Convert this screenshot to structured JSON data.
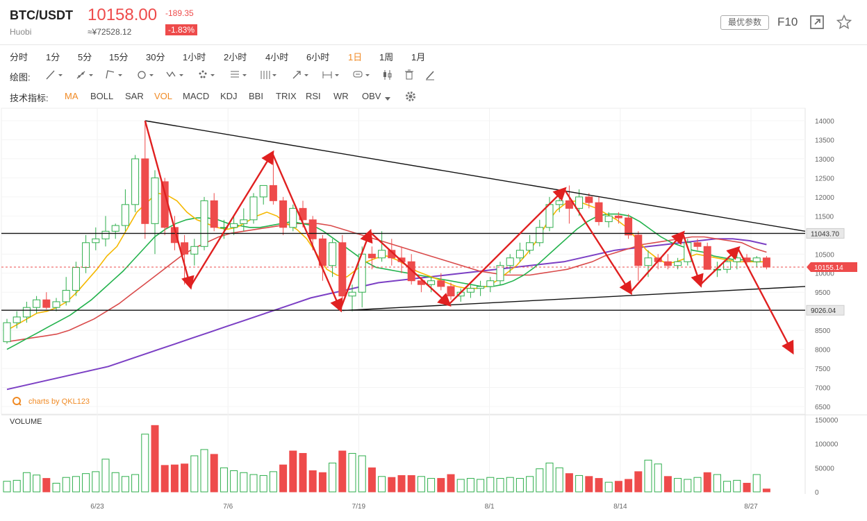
{
  "header": {
    "symbol": "BTC/USDT",
    "exchange": "Huobi",
    "price": "10158.00",
    "cny_price": "≈¥72528.12",
    "change": "-189.35",
    "change_pct": "-1.83%",
    "params_button": "最优参数",
    "f10_button": "F10"
  },
  "periods": [
    "分时",
    "1分",
    "5分",
    "15分",
    "30分",
    "1小时",
    "2小时",
    "4小时",
    "6小时",
    "1日",
    "1周",
    "1月"
  ],
  "active_period": "1日",
  "drawing": {
    "label": "绘图:",
    "tools": [
      "line-tool-icon",
      "ray-tool-icon",
      "polyline-tool-icon",
      "circle-tool-icon",
      "wave-tool-icon",
      "pattern-tool-icon",
      "fib-tool-icon",
      "channel-tool-icon",
      "arrow-tool-icon",
      "range-tool-icon",
      "text-tool-icon",
      "candle-tool-icon",
      "trash-icon",
      "pen-icon"
    ]
  },
  "indicators": {
    "label": "技术指标:",
    "items": [
      "MA",
      "BOLL",
      "SAR",
      "VOL",
      "MACD",
      "KDJ",
      "BBI",
      "TRIX",
      "RSI",
      "WR",
      "OBV"
    ],
    "active": [
      "MA",
      "VOL"
    ]
  },
  "watermark": "charts by QKL123",
  "colors": {
    "up": "#2dae4b",
    "down": "#ee4b4b",
    "ma5": "#f5b800",
    "ma10": "#22b24c",
    "ma20": "#d94a4a",
    "ma60": "#7b3fc4",
    "annotation": "#e02020",
    "accent": "#f08a24"
  },
  "chart_data": [
    {
      "type": "candlestick",
      "title": "BTC/USDT 1日",
      "y_ticks": [
        14000,
        13500,
        13000,
        12500,
        12000,
        11500,
        11000,
        10500,
        10000,
        9500,
        9000,
        8500,
        8000,
        7500,
        7000,
        6500
      ],
      "ylim": [
        6300,
        14300
      ],
      "x_tick_labels": [
        "6/23",
        "7/6",
        "7/19",
        "8/1",
        "8/14",
        "8/27"
      ],
      "price_labels": {
        "last": "10155.14",
        "resistance": "11043.70",
        "support": "9026.04"
      },
      "candles": [
        {
          "o": 8200,
          "h": 8800,
          "l": 8150,
          "c": 8700
        },
        {
          "o": 8700,
          "h": 9000,
          "l": 8550,
          "c": 8850
        },
        {
          "o": 8850,
          "h": 9250,
          "l": 8700,
          "c": 9100
        },
        {
          "o": 9100,
          "h": 9400,
          "l": 8950,
          "c": 9300
        },
        {
          "o": 9300,
          "h": 9500,
          "l": 9050,
          "c": 9100
        },
        {
          "o": 9100,
          "h": 9350,
          "l": 9000,
          "c": 9250
        },
        {
          "o": 9250,
          "h": 9900,
          "l": 9150,
          "c": 9550
        },
        {
          "o": 9550,
          "h": 10300,
          "l": 9400,
          "c": 10150
        },
        {
          "o": 10150,
          "h": 11000,
          "l": 10000,
          "c": 10800
        },
        {
          "o": 10800,
          "h": 11200,
          "l": 10600,
          "c": 10900
        },
        {
          "o": 10900,
          "h": 11500,
          "l": 10700,
          "c": 11100
        },
        {
          "o": 11100,
          "h": 11300,
          "l": 10900,
          "c": 11250
        },
        {
          "o": 11250,
          "h": 12200,
          "l": 11100,
          "c": 11800
        },
        {
          "o": 11800,
          "h": 13100,
          "l": 11600,
          "c": 13000
        },
        {
          "o": 13000,
          "h": 14000,
          "l": 10900,
          "c": 11300
        },
        {
          "o": 11300,
          "h": 12700,
          "l": 10500,
          "c": 12500
        },
        {
          "o": 12400,
          "h": 12500,
          "l": 11000,
          "c": 11200
        },
        {
          "o": 11200,
          "h": 11500,
          "l": 10600,
          "c": 10800
        },
        {
          "o": 10800,
          "h": 11000,
          "l": 9700,
          "c": 10500
        },
        {
          "o": 10500,
          "h": 10900,
          "l": 10200,
          "c": 10700
        },
        {
          "o": 10700,
          "h": 12000,
          "l": 10600,
          "c": 11900
        },
        {
          "o": 11900,
          "h": 12100,
          "l": 11100,
          "c": 11200
        },
        {
          "o": 11200,
          "h": 11400,
          "l": 10900,
          "c": 11200
        },
        {
          "o": 11200,
          "h": 11500,
          "l": 11000,
          "c": 11300
        },
        {
          "o": 11300,
          "h": 11700,
          "l": 11100,
          "c": 11400
        },
        {
          "o": 11400,
          "h": 12100,
          "l": 11300,
          "c": 12000
        },
        {
          "o": 12000,
          "h": 12300,
          "l": 11800,
          "c": 12300
        },
        {
          "o": 12300,
          "h": 13100,
          "l": 11800,
          "c": 11900
        },
        {
          "o": 11900,
          "h": 12000,
          "l": 11000,
          "c": 11200
        },
        {
          "o": 11200,
          "h": 11800,
          "l": 11100,
          "c": 11700
        },
        {
          "o": 11700,
          "h": 11900,
          "l": 11200,
          "c": 11400
        },
        {
          "o": 11400,
          "h": 11500,
          "l": 10600,
          "c": 10900
        },
        {
          "o": 10900,
          "h": 11000,
          "l": 9800,
          "c": 10200
        },
        {
          "o": 10200,
          "h": 10900,
          "l": 9900,
          "c": 10800
        },
        {
          "o": 10800,
          "h": 11000,
          "l": 9200,
          "c": 9400
        },
        {
          "o": 9400,
          "h": 9700,
          "l": 9000,
          "c": 9500
        },
        {
          "o": 9500,
          "h": 10700,
          "l": 9100,
          "c": 10500
        },
        {
          "o": 10500,
          "h": 10700,
          "l": 10100,
          "c": 10400
        },
        {
          "o": 10400,
          "h": 11100,
          "l": 10300,
          "c": 10600
        },
        {
          "o": 10600,
          "h": 10900,
          "l": 10200,
          "c": 10400
        },
        {
          "o": 10400,
          "h": 10700,
          "l": 10000,
          "c": 10300
        },
        {
          "o": 10300,
          "h": 10500,
          "l": 9700,
          "c": 9800
        },
        {
          "o": 9800,
          "h": 9900,
          "l": 9500,
          "c": 9700
        },
        {
          "o": 9700,
          "h": 9900,
          "l": 9500,
          "c": 9800
        },
        {
          "o": 9800,
          "h": 10000,
          "l": 9550,
          "c": 9650
        },
        {
          "o": 9650,
          "h": 9750,
          "l": 9300,
          "c": 9400
        },
        {
          "o": 9400,
          "h": 9600,
          "l": 9250,
          "c": 9500
        },
        {
          "o": 9500,
          "h": 9700,
          "l": 9350,
          "c": 9600
        },
        {
          "o": 9600,
          "h": 9800,
          "l": 9400,
          "c": 9650
        },
        {
          "o": 9650,
          "h": 9900,
          "l": 9500,
          "c": 9800
        },
        {
          "o": 9800,
          "h": 10300,
          "l": 9700,
          "c": 10200
        },
        {
          "o": 10200,
          "h": 10500,
          "l": 10000,
          "c": 10400
        },
        {
          "o": 10400,
          "h": 10800,
          "l": 10300,
          "c": 10600
        },
        {
          "o": 10600,
          "h": 11000,
          "l": 10500,
          "c": 10800
        },
        {
          "o": 10800,
          "h": 11400,
          "l": 10700,
          "c": 11200
        },
        {
          "o": 11200,
          "h": 12000,
          "l": 11100,
          "c": 11800
        },
        {
          "o": 11800,
          "h": 12100,
          "l": 11600,
          "c": 11900
        },
        {
          "o": 11900,
          "h": 12300,
          "l": 11300,
          "c": 11700
        },
        {
          "o": 11700,
          "h": 12200,
          "l": 11500,
          "c": 12000
        },
        {
          "o": 12000,
          "h": 12100,
          "l": 11700,
          "c": 11850
        },
        {
          "o": 11850,
          "h": 12000,
          "l": 11250,
          "c": 11350
        },
        {
          "o": 11350,
          "h": 11600,
          "l": 11200,
          "c": 11500
        },
        {
          "o": 11500,
          "h": 11600,
          "l": 11300,
          "c": 11450
        },
        {
          "o": 11450,
          "h": 11550,
          "l": 10900,
          "c": 11000
        },
        {
          "o": 11000,
          "h": 11100,
          "l": 9800,
          "c": 10200
        },
        {
          "o": 10200,
          "h": 10600,
          "l": 9900,
          "c": 10400
        },
        {
          "o": 10400,
          "h": 10500,
          "l": 10100,
          "c": 10300
        },
        {
          "o": 10300,
          "h": 10500,
          "l": 10100,
          "c": 10200
        },
        {
          "o": 10200,
          "h": 10400,
          "l": 10100,
          "c": 10300
        },
        {
          "o": 10300,
          "h": 10900,
          "l": 10200,
          "c": 10800
        },
        {
          "o": 10800,
          "h": 10900,
          "l": 10600,
          "c": 10700
        },
        {
          "o": 10700,
          "h": 10800,
          "l": 10100,
          "c": 10100
        },
        {
          "o": 10100,
          "h": 10300,
          "l": 9900,
          "c": 10100
        },
        {
          "o": 10100,
          "h": 10400,
          "l": 10000,
          "c": 10300
        },
        {
          "o": 10300,
          "h": 10500,
          "l": 10100,
          "c": 10400
        },
        {
          "o": 10400,
          "h": 10500,
          "l": 10200,
          "c": 10300
        },
        {
          "o": 10300,
          "h": 10450,
          "l": 10150,
          "c": 10400
        },
        {
          "o": 10400,
          "h": 10450,
          "l": 10100,
          "c": 10158
        }
      ],
      "ma5": [
        8500,
        8650,
        8800,
        8950,
        9000,
        9100,
        9250,
        9500,
        9800,
        10100,
        10450,
        10700,
        11150,
        11600,
        11850,
        12100,
        12050,
        11900,
        11600,
        11400,
        11300,
        11200,
        11150,
        11200,
        11350,
        11500,
        11600,
        11500,
        11300,
        11150,
        10900,
        10500,
        10100,
        9950,
        9900,
        10100,
        10300,
        10400,
        10450,
        10350,
        10200,
        10050,
        9950,
        9850,
        9750,
        9650,
        9600,
        9600,
        9650,
        9800,
        10000,
        10200,
        10500,
        10850,
        11300,
        11650,
        11850,
        11900,
        11800,
        11700,
        11550,
        11400,
        11200,
        10900,
        10600,
        10400,
        10250,
        10300,
        10400,
        10500,
        10450,
        10400,
        10350,
        10300,
        10300,
        10300,
        10300
      ],
      "ma10": [
        8000,
        8150,
        8300,
        8450,
        8600,
        8750,
        8900,
        9100,
        9300,
        9550,
        9800,
        10050,
        10350,
        10650,
        10950,
        11150,
        11300,
        11400,
        11450,
        11450,
        11400,
        11300,
        11250,
        11200,
        11200,
        11250,
        11300,
        11350,
        11300,
        11250,
        11100,
        10900,
        10700,
        10500,
        10300,
        10150,
        10100,
        10050,
        10000,
        9950,
        9900,
        9850,
        9800,
        9750,
        9700,
        9650,
        9650,
        9700,
        9800,
        9950,
        10150,
        10400,
        10650,
        10900,
        11150,
        11350,
        11500,
        11550,
        11550,
        11500,
        11350,
        11150,
        10950,
        10800,
        10700,
        10600,
        10550,
        10450,
        10400,
        10350,
        10350,
        10300,
        10300
      ],
      "ma20": [
        8200,
        8250,
        8300,
        8350,
        8400,
        8500,
        8650,
        8800,
        9000,
        9200,
        9450,
        9700,
        9950,
        10200,
        10450,
        10650,
        10800,
        10950,
        11050,
        11100,
        11150,
        11200,
        11250,
        11300,
        11300,
        11300,
        11250,
        11150,
        11050,
        10950,
        10850,
        10750,
        10650,
        10550,
        10450,
        10350,
        10250,
        10150,
        10050,
        10000,
        9950,
        9950,
        9950,
        10000,
        10050,
        10100,
        10200,
        10300,
        10450,
        10550,
        10650,
        10750,
        10800,
        10850,
        10900,
        10950,
        10950,
        10900,
        10850,
        10800,
        10650,
        10550
      ],
      "ma60": [
        6950,
        7050,
        7150,
        7250,
        7350,
        7450,
        7550,
        7700,
        7850,
        8000,
        8150,
        8300,
        8450,
        8600,
        8750,
        8900,
        9050,
        9200,
        9350,
        9450,
        9550,
        9650,
        9750,
        9800,
        9850,
        9900,
        9950,
        10000,
        10050,
        10100,
        10150,
        10200,
        10250,
        10300,
        10400,
        10500,
        10600,
        10650,
        10700,
        10750,
        10800,
        10850,
        10900,
        10900,
        10850,
        10750
      ]
    },
    {
      "type": "bar",
      "title": "VOLUME",
      "y_ticks": [
        150000,
        100000,
        50000,
        0
      ],
      "ylim": [
        0,
        150000
      ],
      "values": [
        22000,
        24000,
        40000,
        35000,
        28000,
        18000,
        30000,
        32000,
        38000,
        42000,
        68000,
        40000,
        32000,
        36000,
        120000,
        138000,
        55000,
        56000,
        58000,
        75000,
        88000,
        78000,
        50000,
        44000,
        40000,
        36000,
        34000,
        42000,
        56000,
        85000,
        80000,
        44000,
        40000,
        60000,
        85000,
        80000,
        75000,
        50000,
        32000,
        30000,
        34000,
        34000,
        32000,
        28000,
        28000,
        36000,
        26000,
        28000,
        26000,
        30000,
        28000,
        30000,
        28000,
        32000,
        48000,
        60000,
        50000,
        38000,
        34000,
        32000,
        28000,
        20000,
        22000,
        26000,
        42000,
        66000,
        58000,
        32000,
        28000,
        26000,
        30000,
        40000,
        36000,
        22000,
        24000,
        18000,
        36000,
        6000
      ],
      "up": [
        true,
        true,
        true,
        true,
        false,
        true,
        true,
        true,
        true,
        true,
        true,
        true,
        true,
        true,
        true,
        false,
        false,
        false,
        false,
        true,
        true,
        false,
        true,
        true,
        true,
        true,
        true,
        true,
        false,
        false,
        false,
        false,
        false,
        true,
        false,
        true,
        true,
        false,
        true,
        false,
        false,
        false,
        true,
        true,
        false,
        false,
        true,
        true,
        true,
        true,
        true,
        true,
        true,
        true,
        true,
        true,
        true,
        false,
        true,
        false,
        false,
        true,
        false,
        false,
        false,
        true,
        true,
        false,
        true,
        true,
        true,
        false,
        true,
        true,
        true,
        false,
        true,
        false
      ]
    }
  ]
}
